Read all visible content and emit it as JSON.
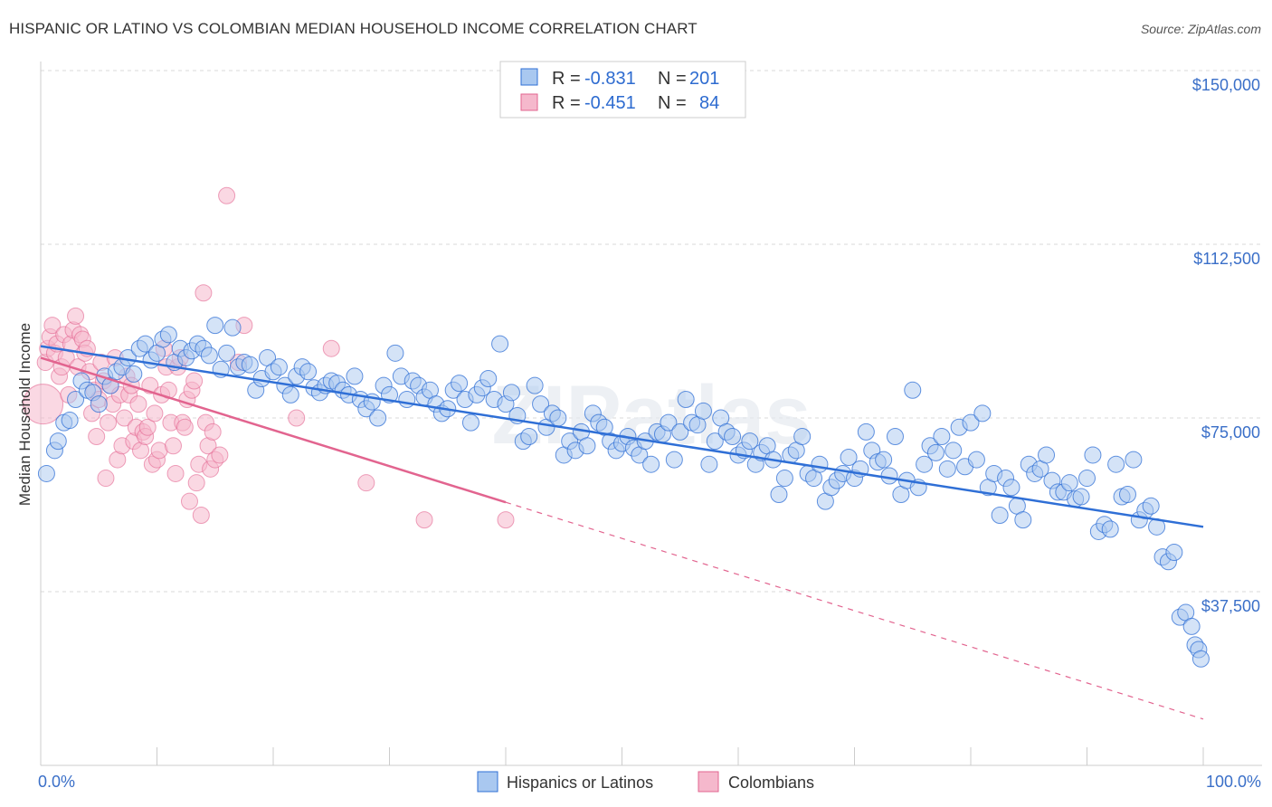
{
  "header": {
    "title": "HISPANIC OR LATINO VS COLOMBIAN MEDIAN HOUSEHOLD INCOME CORRELATION CHART",
    "source": "Source: ZipAtlas.com"
  },
  "watermark": "ZIPatlas",
  "colors": {
    "blue": "#2f6fd6",
    "blue_fill": "#a9c8f0",
    "pink": "#e2648f",
    "pink_fill": "#f5b8cc",
    "grid": "#d8d8d8",
    "tick_text": "#3a6fc8"
  },
  "chart_data": {
    "type": "scatter",
    "title": "HISPANIC OR LATINO VS COLOMBIAN MEDIAN HOUSEHOLD INCOME CORRELATION CHART",
    "xlabel": "",
    "ylabel": "Median Household Income",
    "xlim": [
      0,
      100
    ],
    "ylim": [
      0,
      155000
    ],
    "x_tick_labels": [
      "0.0%",
      "100.0%"
    ],
    "y_ticks": [
      37500,
      75000,
      112500,
      150000
    ],
    "y_tick_labels": [
      "$37,500",
      "$75,000",
      "$112,500",
      "$150,000"
    ],
    "legend_stats": [
      {
        "r_label": "R =",
        "r": "-0.831",
        "n_label": "N =",
        "n": "201"
      },
      {
        "r_label": "R =",
        "r": "-0.451",
        "n_label": "N =",
        "n": "84"
      }
    ],
    "series": [
      {
        "name": "Hispanics or Latinos",
        "color": "#2f6fd6",
        "trend": {
          "x0": 0,
          "y0": 90500,
          "x1": 100,
          "y1": 51500,
          "dashed_from": null
        },
        "points": [
          [
            0.5,
            63000
          ],
          [
            1.2,
            68000
          ],
          [
            1.5,
            70000
          ],
          [
            2,
            74000
          ],
          [
            2.5,
            74500
          ],
          [
            3,
            79000
          ],
          [
            3.5,
            83000
          ],
          [
            4,
            81000
          ],
          [
            4.5,
            80500
          ],
          [
            5,
            78000
          ],
          [
            5.5,
            84000
          ],
          [
            6,
            82000
          ],
          [
            6.5,
            85000
          ],
          [
            7,
            86000
          ],
          [
            7.5,
            88000
          ],
          [
            8,
            84500
          ],
          [
            8.5,
            90000
          ],
          [
            9,
            91000
          ],
          [
            9.5,
            87500
          ],
          [
            10,
            89000
          ],
          [
            10.5,
            92000
          ],
          [
            11,
            93000
          ],
          [
            11.5,
            87000
          ],
          [
            12,
            90000
          ],
          [
            12.5,
            88000
          ],
          [
            13,
            89500
          ],
          [
            13.5,
            91000
          ],
          [
            14,
            90000
          ],
          [
            14.5,
            88500
          ],
          [
            15,
            95000
          ],
          [
            15.5,
            85500
          ],
          [
            16,
            89000
          ],
          [
            16.5,
            94500
          ],
          [
            17,
            86000
          ],
          [
            17.5,
            87000
          ],
          [
            18,
            86500
          ],
          [
            18.5,
            81000
          ],
          [
            19,
            83500
          ],
          [
            19.5,
            88000
          ],
          [
            20,
            85000
          ],
          [
            20.5,
            86000
          ],
          [
            21,
            82000
          ],
          [
            21.5,
            80000
          ],
          [
            22,
            84000
          ],
          [
            22.5,
            86000
          ],
          [
            23,
            85000
          ],
          [
            23.5,
            81500
          ],
          [
            24,
            80500
          ],
          [
            24.5,
            82000
          ],
          [
            25,
            83000
          ],
          [
            25.5,
            82500
          ],
          [
            26,
            81000
          ],
          [
            26.5,
            80000
          ],
          [
            27,
            84000
          ],
          [
            27.5,
            79000
          ],
          [
            28,
            77000
          ],
          [
            28.5,
            78500
          ],
          [
            29,
            75000
          ],
          [
            29.5,
            82000
          ],
          [
            30,
            80000
          ],
          [
            30.5,
            89000
          ],
          [
            31,
            84000
          ],
          [
            31.5,
            79000
          ],
          [
            32,
            83000
          ],
          [
            32.5,
            82000
          ],
          [
            33,
            79500
          ],
          [
            33.5,
            81000
          ],
          [
            34,
            78000
          ],
          [
            34.5,
            76000
          ],
          [
            35,
            77000
          ],
          [
            35.5,
            81000
          ],
          [
            36,
            82500
          ],
          [
            36.5,
            79000
          ],
          [
            37,
            74000
          ],
          [
            37.5,
            80000
          ],
          [
            38,
            81500
          ],
          [
            38.5,
            83500
          ],
          [
            39,
            79000
          ],
          [
            39.5,
            91000
          ],
          [
            40,
            78000
          ],
          [
            40.5,
            80500
          ],
          [
            41,
            75500
          ],
          [
            41.5,
            70000
          ],
          [
            42,
            71000
          ],
          [
            42.5,
            82000
          ],
          [
            43,
            78000
          ],
          [
            43.5,
            73000
          ],
          [
            44,
            76000
          ],
          [
            44.5,
            75000
          ],
          [
            45,
            67000
          ],
          [
            45.5,
            70000
          ],
          [
            46,
            68000
          ],
          [
            46.5,
            72000
          ],
          [
            47,
            69000
          ],
          [
            47.5,
            76000
          ],
          [
            48,
            74000
          ],
          [
            48.5,
            73000
          ],
          [
            49,
            70000
          ],
          [
            49.5,
            68000
          ],
          [
            50,
            69500
          ],
          [
            50.5,
            71000
          ],
          [
            51,
            68500
          ],
          [
            51.5,
            67000
          ],
          [
            52,
            70000
          ],
          [
            52.5,
            65000
          ],
          [
            53,
            72000
          ],
          [
            53.5,
            71500
          ],
          [
            54,
            74000
          ],
          [
            54.5,
            66000
          ],
          [
            55,
            72000
          ],
          [
            55.5,
            79000
          ],
          [
            56,
            74000
          ],
          [
            56.5,
            73500
          ],
          [
            57,
            76500
          ],
          [
            57.5,
            65000
          ],
          [
            58,
            70000
          ],
          [
            58.5,
            75000
          ],
          [
            59,
            72000
          ],
          [
            59.5,
            71000
          ],
          [
            60,
            67000
          ],
          [
            60.5,
            68000
          ],
          [
            61,
            70000
          ],
          [
            61.5,
            65000
          ],
          [
            62,
            67500
          ],
          [
            62.5,
            69000
          ],
          [
            63,
            66000
          ],
          [
            63.5,
            58500
          ],
          [
            64,
            62000
          ],
          [
            64.5,
            67000
          ],
          [
            65,
            68000
          ],
          [
            65.5,
            71000
          ],
          [
            66,
            63000
          ],
          [
            66.5,
            62000
          ],
          [
            67,
            65000
          ],
          [
            67.5,
            57000
          ],
          [
            68,
            60000
          ],
          [
            68.5,
            61500
          ],
          [
            69,
            63000
          ],
          [
            69.5,
            66500
          ],
          [
            70,
            62000
          ],
          [
            70.5,
            64000
          ],
          [
            71,
            72000
          ],
          [
            71.5,
            68000
          ],
          [
            72,
            65500
          ],
          [
            72.5,
            66000
          ],
          [
            73,
            62500
          ],
          [
            73.5,
            71000
          ],
          [
            74,
            58500
          ],
          [
            74.5,
            61500
          ],
          [
            75,
            81000
          ],
          [
            75.5,
            60000
          ],
          [
            76,
            65000
          ],
          [
            76.5,
            69000
          ],
          [
            77,
            67500
          ],
          [
            77.5,
            71000
          ],
          [
            78,
            64000
          ],
          [
            78.5,
            68000
          ],
          [
            79,
            73000
          ],
          [
            79.5,
            64500
          ],
          [
            80,
            74000
          ],
          [
            80.5,
            66000
          ],
          [
            81,
            76000
          ],
          [
            81.5,
            60000
          ],
          [
            82,
            63000
          ],
          [
            82.5,
            54000
          ],
          [
            83,
            62000
          ],
          [
            83.5,
            60000
          ],
          [
            84,
            56000
          ],
          [
            84.5,
            53000
          ],
          [
            85,
            65000
          ],
          [
            85.5,
            63000
          ],
          [
            86,
            64000
          ],
          [
            86.5,
            67000
          ],
          [
            87,
            61500
          ],
          [
            87.5,
            59000
          ],
          [
            88,
            59000
          ],
          [
            88.5,
            61000
          ],
          [
            89,
            57500
          ],
          [
            89.5,
            58000
          ],
          [
            90,
            62000
          ],
          [
            90.5,
            67000
          ],
          [
            91,
            50500
          ],
          [
            91.5,
            52000
          ],
          [
            92,
            51000
          ],
          [
            92.5,
            65000
          ],
          [
            93,
            58000
          ],
          [
            93.5,
            58500
          ],
          [
            94,
            66000
          ],
          [
            94.5,
            53000
          ],
          [
            95,
            55000
          ],
          [
            95.5,
            56000
          ],
          [
            96,
            51500
          ],
          [
            96.5,
            45000
          ],
          [
            97,
            44000
          ],
          [
            97.5,
            46000
          ],
          [
            98,
            32000
          ],
          [
            98.5,
            33000
          ],
          [
            99,
            30000
          ],
          [
            99.3,
            26000
          ],
          [
            99.6,
            25000
          ],
          [
            99.8,
            23000
          ]
        ]
      },
      {
        "name": "Colombians",
        "color": "#e2648f",
        "trend": {
          "x0": 0,
          "y0": 88000,
          "x1": 100,
          "y1": 10000,
          "solid_until": 40
        },
        "points": [
          [
            0.2,
            78000
          ],
          [
            0.4,
            87000
          ],
          [
            0.6,
            90000
          ],
          [
            0.8,
            92500
          ],
          [
            1,
            95000
          ],
          [
            1.2,
            89000
          ],
          [
            1.4,
            91000
          ],
          [
            1.6,
            84000
          ],
          [
            1.8,
            86000
          ],
          [
            2,
            93000
          ],
          [
            2.2,
            88000
          ],
          [
            2.4,
            80000
          ],
          [
            2.6,
            91000
          ],
          [
            2.8,
            94000
          ],
          [
            3,
            97000
          ],
          [
            3.2,
            86000
          ],
          [
            3.4,
            93000
          ],
          [
            3.6,
            92000
          ],
          [
            3.8,
            89000
          ],
          [
            4,
            90000
          ],
          [
            4.2,
            85000
          ],
          [
            4.4,
            76000
          ],
          [
            4.6,
            81000
          ],
          [
            4.8,
            71000
          ],
          [
            5,
            79000
          ],
          [
            5.2,
            87000
          ],
          [
            5.4,
            83000
          ],
          [
            5.6,
            62000
          ],
          [
            5.8,
            74000
          ],
          [
            6,
            82000
          ],
          [
            6.2,
            78000
          ],
          [
            6.4,
            88000
          ],
          [
            6.6,
            66000
          ],
          [
            6.8,
            80000
          ],
          [
            7,
            69000
          ],
          [
            7.2,
            75000
          ],
          [
            7.4,
            84000
          ],
          [
            7.6,
            80000
          ],
          [
            7.8,
            82000
          ],
          [
            8,
            70000
          ],
          [
            8.2,
            73000
          ],
          [
            8.4,
            78000
          ],
          [
            8.6,
            68000
          ],
          [
            8.8,
            72000
          ],
          [
            9,
            71000
          ],
          [
            9.2,
            73000
          ],
          [
            9.4,
            82000
          ],
          [
            9.6,
            65000
          ],
          [
            9.8,
            76000
          ],
          [
            10,
            66000
          ],
          [
            10.2,
            68000
          ],
          [
            10.4,
            80000
          ],
          [
            10.6,
            90000
          ],
          [
            10.8,
            86000
          ],
          [
            11,
            81000
          ],
          [
            11.2,
            74000
          ],
          [
            11.4,
            69000
          ],
          [
            11.6,
            63000
          ],
          [
            11.8,
            86000
          ],
          [
            12,
            88000
          ],
          [
            12.2,
            74000
          ],
          [
            12.4,
            73000
          ],
          [
            12.6,
            79000
          ],
          [
            12.8,
            57000
          ],
          [
            13,
            81000
          ],
          [
            13.2,
            83000
          ],
          [
            13.4,
            61000
          ],
          [
            13.6,
            65000
          ],
          [
            13.8,
            54000
          ],
          [
            14,
            102000
          ],
          [
            14.2,
            74000
          ],
          [
            14.4,
            69000
          ],
          [
            14.6,
            64000
          ],
          [
            14.8,
            72000
          ],
          [
            15,
            66000
          ],
          [
            15.4,
            67000
          ],
          [
            16,
            123000
          ],
          [
            17,
            87000
          ],
          [
            17.5,
            95000
          ],
          [
            22,
            75000
          ],
          [
            25,
            90000
          ],
          [
            28,
            61000
          ],
          [
            33,
            53000
          ],
          [
            40,
            53000
          ]
        ]
      }
    ]
  },
  "legend": {
    "items": [
      "Hispanics or Latinos",
      "Colombians"
    ]
  }
}
